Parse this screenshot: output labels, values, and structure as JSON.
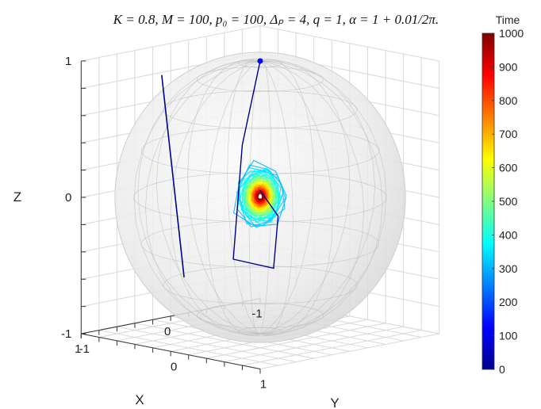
{
  "chart_data": {
    "type": "scatter",
    "title": "K = 0.8,  M = 100,  p₀ = 100,  Δₚ = 4,  q = 1,  α = 1 + 0.01/2π.",
    "xlabel": "X",
    "ylabel": "Y",
    "zlabel": "Z",
    "xlim": [
      -1,
      1
    ],
    "ylim": [
      -1,
      1
    ],
    "zlim": [
      -1,
      1
    ],
    "x_ticks": [
      "-1",
      "0",
      "1"
    ],
    "y_ticks": [
      "-1",
      "0",
      "1"
    ],
    "z_ticks": [
      "-1",
      "0",
      "1"
    ],
    "grid": true,
    "unit_sphere": true,
    "colorbar": {
      "title": "Time",
      "min": 0,
      "max": 1000,
      "ticks": [
        "0",
        "100",
        "200",
        "300",
        "400",
        "500",
        "600",
        "700",
        "800",
        "900",
        "1000"
      ],
      "colormap": "jet"
    },
    "start_point": {
      "label": "initial state",
      "color": "#0000ff",
      "xyz": [
        0.0,
        0.0,
        1.0
      ]
    },
    "trajectory_early": {
      "color": "#00008b",
      "time_range": [
        0,
        10
      ],
      "points_xyz": [
        [
          0.0,
          0.0,
          1.0
        ],
        [
          0.55,
          0.35,
          0.5
        ],
        [
          0.55,
          0.25,
          -0.35
        ],
        [
          0.0,
          0.15,
          -0.5
        ],
        [
          -0.15,
          0.05,
          -0.15
        ],
        [
          0.0,
          0.0,
          0.05
        ]
      ]
    },
    "far_line": {
      "color": "#00008b",
      "points_xyz": [
        [
          0.95,
          -0.15,
          1.0
        ],
        [
          0.95,
          0.1,
          -0.45
        ]
      ]
    },
    "spiral_cluster": {
      "center_xyz": [
        0.05,
        0.05,
        0.02
      ],
      "time_range": [
        300,
        1000
      ],
      "outer_radius": 0.23,
      "inner_radius": 0.02
    }
  }
}
